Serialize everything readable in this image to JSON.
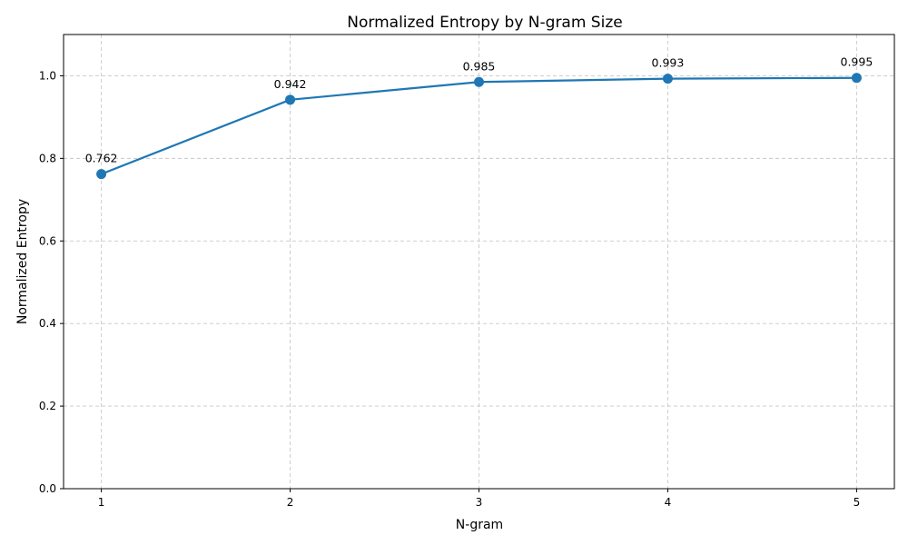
{
  "chart_data": {
    "type": "line",
    "title": "Normalized Entropy by N-gram Size",
    "xlabel": "N-gram",
    "ylabel": "Normalized Entropy",
    "x": [
      1,
      2,
      3,
      4,
      5
    ],
    "xticks": [
      "1",
      "2",
      "3",
      "4",
      "5"
    ],
    "xlim": [
      0.8,
      5.2
    ],
    "ylim": [
      0,
      1.1
    ],
    "yticks": [
      "0.0",
      "0.2",
      "0.4",
      "0.6",
      "0.8",
      "1.0"
    ],
    "series": [
      {
        "values": [
          0.762,
          0.942,
          0.985,
          0.993,
          0.995
        ],
        "labels": [
          "0.762",
          "0.942",
          "0.985",
          "0.993",
          "0.995"
        ],
        "color": "#1f77b4",
        "marker": "circle"
      }
    ],
    "grid": true
  }
}
